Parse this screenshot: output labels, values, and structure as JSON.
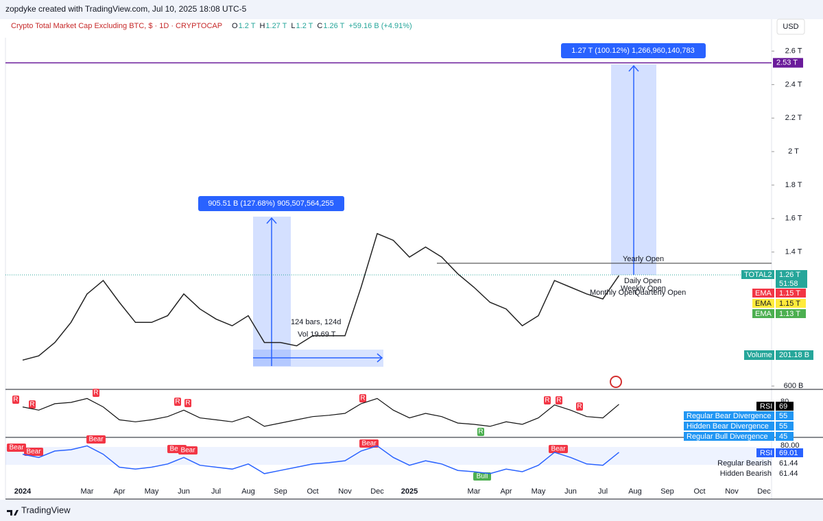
{
  "header": {
    "credit": "zopdyke created with TradingView.com, Jul 10, 2025 18:08 UTC-5",
    "symbol": "Crypto Total Market Cap Excluding BTC, $ · 1D · CRYPTOCAP",
    "ohlc": [
      {
        "key": "O",
        "value": "1.2 T"
      },
      {
        "key": "H",
        "value": "1.27 T"
      },
      {
        "key": "L",
        "value": "1.2 T"
      },
      {
        "key": "C",
        "value": "1.26 T"
      }
    ],
    "change": "+59.16 B (+4.91%)",
    "currency": "USD"
  },
  "chart_data": {
    "type": "line",
    "color": "#222222",
    "x_labels": [
      "2024",
      null,
      "Mar",
      "Apr",
      "May",
      "Jun",
      "Jul",
      "Aug",
      "Sep",
      "Oct",
      "Nov",
      "Dec",
      "2025",
      null,
      "Mar",
      "Apr",
      "May",
      "Jun",
      "Jul",
      "Aug",
      "Sep",
      "Oct",
      "Nov",
      "Dec"
    ],
    "values": [
      0.755,
      0.78,
      0.86,
      0.98,
      1.15,
      1.23,
      1.1,
      0.98,
      0.98,
      1.02,
      1.15,
      1.06,
      1.0,
      0.96,
      1.02,
      0.86,
      0.86,
      0.84,
      0.9,
      0.9,
      0.9,
      1.19,
      1.51,
      1.47,
      1.37,
      1.43,
      1.37,
      1.27,
      1.19,
      1.1,
      1.06,
      0.96,
      1.02,
      1.23,
      1.19,
      1.15,
      1.12,
      1.26
    ],
    "ylim": [
      0.58,
      2.68
    ],
    "yticks": [
      {
        "value": 0.6,
        "label": "600 B"
      },
      {
        "value": 1.4,
        "label": "1.4 T"
      },
      {
        "value": 1.6,
        "label": "1.6 T"
      },
      {
        "value": 1.8,
        "label": "1.8 T"
      },
      {
        "value": 2,
        "label": "2 T"
      },
      {
        "value": 2.2,
        "label": "2.2 T"
      },
      {
        "value": 2.4,
        "label": "2.4 T"
      },
      {
        "value": 2.6,
        "label": "2.6 T"
      }
    ],
    "level": {
      "value": 2.53,
      "label": "2.53 T",
      "color": "#6a1b9a"
    },
    "rsi": {
      "color": "#111111",
      "ylim": [
        20,
        90
      ],
      "values": [
        65,
        60,
        70,
        72,
        78,
        65,
        45,
        42,
        45,
        50,
        60,
        48,
        45,
        42,
        50,
        35,
        40,
        45,
        50,
        52,
        55,
        70,
        78,
        60,
        48,
        55,
        50,
        40,
        38,
        35,
        42,
        38,
        48,
        68,
        60,
        50,
        48,
        69
      ]
    },
    "rsi2": {
      "color": "#2962ff",
      "ylim": [
        20,
        90
      ],
      "values": [
        66,
        61,
        71,
        73,
        79,
        66,
        46,
        43,
        46,
        51,
        61,
        49,
        46,
        43,
        51,
        36,
        41,
        46,
        51,
        53,
        56,
        71,
        79,
        61,
        49,
        56,
        51,
        41,
        39,
        36,
        43,
        39,
        49,
        69,
        61,
        51,
        49,
        69
      ]
    }
  },
  "annotations": {
    "measure_up": "1.27 T (100.12%) 1,266,960,140,783",
    "measure_left": "905.51 B (127.68%) 905,507,564,255",
    "range_bars": "124 bars, 124d",
    "range_vol": "Vol 19.69 T",
    "yearly_open": "Yearly Open",
    "daily_open": "Daily Open",
    "weekly_open": "Weekly Open",
    "monthly_open": "Monthly Open",
    "quarterly_open": "Quarterly Open",
    "rsi_markers": [
      "R",
      "R",
      "R",
      "R",
      "R",
      "R",
      "R",
      "R",
      "R"
    ],
    "bear_markers": [
      "Bear",
      "Bear",
      "Bear",
      "Bear",
      "Bear",
      "Bear",
      "Bear"
    ],
    "bull_rsi": "R",
    "bull": "Bull"
  },
  "tags": {
    "total2": "TOTAL2",
    "total2_value": "1.26 T",
    "countdown": "51:58",
    "ema": [
      {
        "name": "EMA",
        "value": "1.15 T"
      },
      {
        "name": "EMA",
        "value": "1.15 T"
      },
      {
        "name": "EMA",
        "value": "1.13 T"
      }
    ],
    "volume": "Volume",
    "volume_value": "201.18 B",
    "rsi": "RSI",
    "rsi_value": "69",
    "rsi_80": "80",
    "div": [
      {
        "name": "Regular Bear Divergence",
        "value": "55"
      },
      {
        "name": "Hidden Bear Divergence",
        "value": "55"
      },
      {
        "name": "Regular Bull Divergence",
        "value": "45"
      }
    ],
    "rsi2": "RSI",
    "rsi2_value": "69.01",
    "rsi2_80": "80.00",
    "rsi2_rows": [
      {
        "name": "Regular Bearish",
        "value": "61.44"
      },
      {
        "name": "Hidden Bearish",
        "value": "61.44"
      }
    ]
  },
  "footer": {
    "brand": "TradingView"
  }
}
